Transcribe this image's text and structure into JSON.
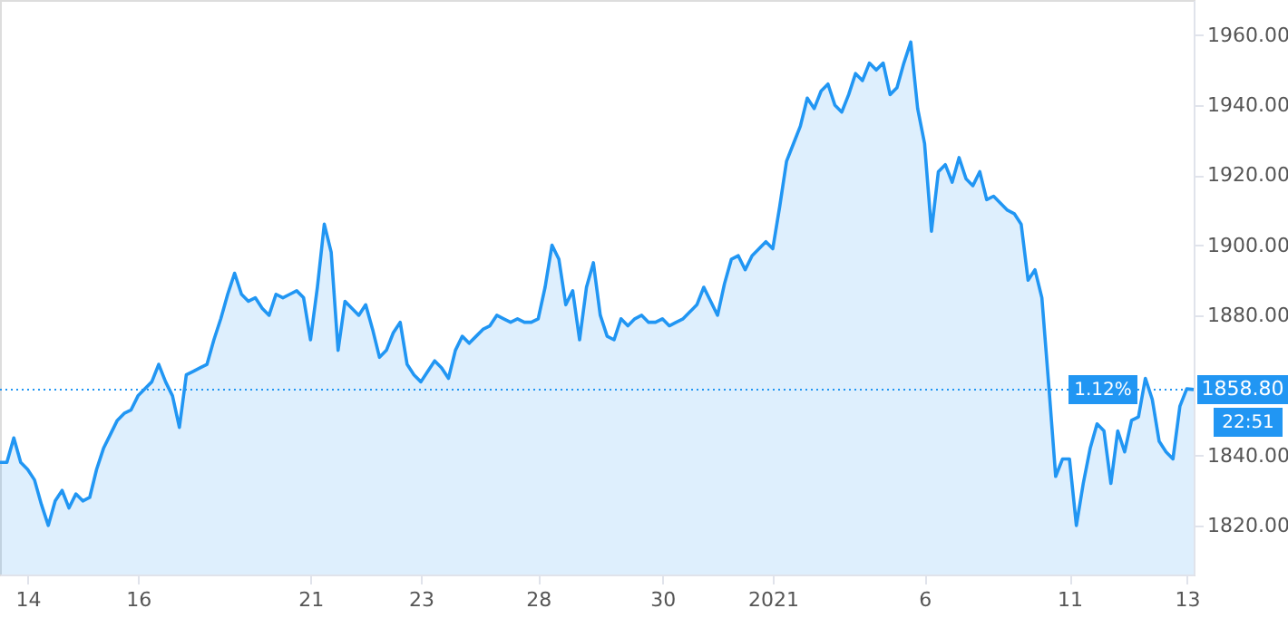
{
  "chart_data": {
    "type": "area",
    "categories": [
      null,
      null,
      null,
      null,
      "14",
      null,
      null,
      null,
      null,
      null,
      null,
      null,
      null,
      null,
      null,
      null,
      null,
      null,
      null,
      null,
      "16",
      null,
      null,
      null,
      null,
      null,
      null,
      null,
      null,
      null,
      null,
      null,
      null,
      null,
      null,
      null,
      null,
      null,
      null,
      null,
      null,
      null,
      null,
      null,
      null,
      "21",
      null,
      null,
      null,
      null,
      null,
      null,
      null,
      null,
      null,
      null,
      null,
      null,
      null,
      null,
      null,
      "23",
      null,
      null,
      null,
      null,
      null,
      null,
      null,
      null,
      null,
      null,
      null,
      null,
      null,
      null,
      null,
      null,
      "28",
      null,
      null,
      null,
      null,
      null,
      null,
      null,
      null,
      null,
      null,
      null,
      null,
      null,
      null,
      null,
      null,
      null,
      "30",
      null,
      null,
      null,
      null,
      null,
      null,
      null,
      null,
      null,
      null,
      null,
      null,
      null,
      null,
      null,
      "2021",
      null,
      null,
      null,
      null,
      null,
      null,
      null,
      null,
      null,
      null,
      null,
      null,
      null,
      null,
      null,
      null,
      null,
      null,
      null,
      null,
      null,
      "6",
      null,
      null,
      null,
      null,
      null,
      null,
      null,
      null,
      null,
      null,
      null,
      null,
      null,
      null,
      null,
      null,
      null,
      null,
      null,
      null,
      "11",
      null,
      null,
      null,
      null,
      null,
      null,
      null,
      null,
      null,
      null,
      null,
      null,
      null,
      null,
      null,
      null,
      "13",
      null
    ],
    "series": [
      {
        "color": "#2196f3",
        "values": [
          1838,
          1838,
          1845,
          1838,
          1836,
          1833,
          1826,
          1820,
          1827,
          1830,
          1825,
          1829,
          1827,
          1828,
          1836,
          1842,
          1846,
          1850,
          1852,
          1853,
          1857,
          1859,
          1861,
          1866,
          1861,
          1857,
          1848,
          1863,
          1864,
          1865,
          1866,
          1873,
          1879,
          1886,
          1892,
          1886,
          1884,
          1885,
          1882,
          1880,
          1886,
          1885,
          1886,
          1887,
          1885,
          1873,
          1888,
          1906,
          1898,
          1870,
          1884,
          1882,
          1880,
          1883,
          1876,
          1868,
          1870,
          1875,
          1878,
          1866,
          1863,
          1861,
          1864,
          1867,
          1865,
          1862,
          1870,
          1874,
          1872,
          1874,
          1876,
          1877,
          1880,
          1879,
          1878,
          1879,
          1878,
          1878,
          1879,
          1888,
          1900,
          1896,
          1883,
          1887,
          1873,
          1888,
          1895,
          1880,
          1874,
          1873,
          1879,
          1877,
          1879,
          1880,
          1878,
          1878,
          1879,
          1877,
          1878,
          1879,
          1881,
          1883,
          1888,
          1884,
          1880,
          1889,
          1896,
          1897,
          1893,
          1897,
          1899,
          1901,
          1899,
          1911,
          1924,
          1929,
          1934,
          1942,
          1939,
          1944,
          1946,
          1940,
          1938,
          1943,
          1949,
          1947,
          1952,
          1950,
          1952,
          1943,
          1945,
          1952,
          1958,
          1939,
          1929,
          1904,
          1921,
          1923,
          1918,
          1925,
          1919,
          1917,
          1921,
          1913,
          1914,
          1912,
          1910,
          1909,
          1906,
          1890,
          1893,
          1885,
          1860,
          1834,
          1839,
          1839,
          1820,
          1832,
          1842,
          1849,
          1847,
          1832,
          1847,
          1841,
          1850,
          1851,
          1862,
          1856,
          1844,
          1841,
          1839,
          1854,
          1859,
          1858.8
        ]
      }
    ],
    "ylim": [
      1806,
      1970
    ],
    "yticks": [
      {
        "value": 1820,
        "label": "1820.00"
      },
      {
        "value": 1840,
        "label": "1840.00"
      },
      {
        "value": 1880,
        "label": "1880.00"
      },
      {
        "value": 1900,
        "label": "1900.00"
      },
      {
        "value": 1920,
        "label": "1920.00"
      },
      {
        "value": 1940,
        "label": "1940.00"
      },
      {
        "value": 1960,
        "label": "1960.00"
      }
    ],
    "ref_lines": [
      {
        "axis": "y",
        "value": 1858.8,
        "label": "1858.80",
        "color": "#2196f3",
        "line_style": "dotted"
      }
    ],
    "annotations": [
      "1.12%",
      "22:51"
    ],
    "grid": false
  }
}
